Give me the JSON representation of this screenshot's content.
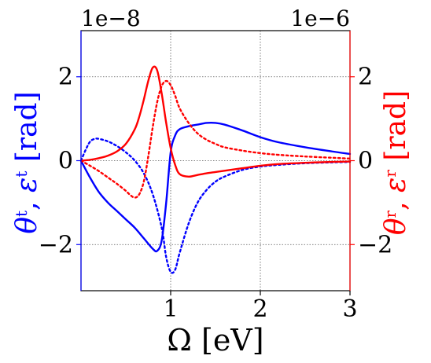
{
  "chart_data": {
    "type": "line",
    "xlabel": "Ω [eV]",
    "xlim": [
      0,
      3
    ],
    "x_ticks": [
      1,
      2,
      3
    ],
    "left_axis": {
      "label_main": "θ",
      "label_sup1": "t",
      "label_sep": ", ",
      "label_eps": "ε",
      "label_sup2": "t",
      "label_unit": " [rad]",
      "scale_label": "1e−8",
      "ylim": [
        -3.1,
        3.1
      ],
      "ticks": [
        -2,
        0,
        2
      ],
      "tick_labels": [
        "−2",
        "0",
        "2"
      ],
      "color": "#0000ff"
    },
    "right_axis": {
      "label_main": "θ",
      "label_sup1": "r",
      "label_sep": ", ",
      "label_eps": "ε",
      "label_sup2": "r",
      "label_unit": " [rad]",
      "scale_label": "1e−6",
      "ylim": [
        -3.1,
        3.1
      ],
      "ticks": [
        -2,
        0,
        2
      ],
      "tick_labels": [
        "−2",
        "0",
        "2"
      ],
      "color": "#ff0000"
    },
    "x_tick_labels": [
      "1",
      "2",
      "3"
    ],
    "grid": true,
    "series": [
      {
        "axis": "left",
        "color": "#0000ff",
        "style": "solid",
        "x": [
          0,
          0.1,
          0.2,
          0.3,
          0.4,
          0.5,
          0.6,
          0.7,
          0.8,
          0.85,
          0.9,
          0.95,
          1.0,
          1.05,
          1.1,
          1.2,
          1.3,
          1.4,
          1.5,
          1.6,
          1.8,
          2.0,
          2.2,
          2.5,
          2.8,
          3.0
        ],
        "y": [
          0,
          -0.4,
          -0.75,
          -1.0,
          -1.2,
          -1.4,
          -1.6,
          -1.85,
          -2.1,
          -2.15,
          -1.9,
          -1.0,
          0.2,
          0.6,
          0.75,
          0.82,
          0.86,
          0.9,
          0.9,
          0.86,
          0.72,
          0.56,
          0.44,
          0.32,
          0.22,
          0.16
        ]
      },
      {
        "axis": "left",
        "color": "#0000ff",
        "style": "dotted",
        "x": [
          0,
          0.05,
          0.1,
          0.15,
          0.2,
          0.3,
          0.4,
          0.5,
          0.6,
          0.7,
          0.8,
          0.9,
          0.95,
          1.0,
          1.05,
          1.1,
          1.2,
          1.3,
          1.4,
          1.5,
          1.6,
          1.8,
          2.0,
          2.2,
          2.5,
          2.8,
          3.0
        ],
        "y": [
          0,
          0.25,
          0.45,
          0.52,
          0.52,
          0.46,
          0.35,
          0.2,
          0.0,
          -0.3,
          -0.8,
          -1.6,
          -2.3,
          -2.65,
          -2.6,
          -2.2,
          -1.5,
          -1.0,
          -0.7,
          -0.5,
          -0.38,
          -0.22,
          -0.14,
          -0.1,
          -0.06,
          -0.04,
          -0.03
        ]
      },
      {
        "axis": "right",
        "color": "#ff0000",
        "style": "solid",
        "x": [
          0,
          0.1,
          0.2,
          0.3,
          0.4,
          0.5,
          0.6,
          0.65,
          0.7,
          0.75,
          0.8,
          0.85,
          0.9,
          0.95,
          1.0,
          1.05,
          1.1,
          1.2,
          1.3,
          1.4,
          1.5,
          1.6,
          1.8,
          2.0,
          2.2,
          2.5,
          2.8,
          3.0
        ],
        "y": [
          0,
          0.02,
          0.06,
          0.12,
          0.22,
          0.4,
          0.75,
          1.05,
          1.45,
          1.9,
          2.22,
          2.15,
          1.6,
          0.9,
          0.3,
          -0.1,
          -0.32,
          -0.38,
          -0.34,
          -0.3,
          -0.27,
          -0.24,
          -0.18,
          -0.12,
          -0.08,
          -0.05,
          -0.03,
          -0.02
        ]
      },
      {
        "axis": "right",
        "color": "#ff0000",
        "style": "dotted",
        "x": [
          0,
          0.1,
          0.2,
          0.3,
          0.4,
          0.5,
          0.55,
          0.6,
          0.65,
          0.7,
          0.75,
          0.8,
          0.85,
          0.9,
          0.95,
          1.0,
          1.05,
          1.1,
          1.2,
          1.3,
          1.4,
          1.5,
          1.6,
          1.8,
          2.0,
          2.2,
          2.5,
          2.8,
          3.0
        ],
        "y": [
          0,
          -0.12,
          -0.25,
          -0.4,
          -0.55,
          -0.72,
          -0.82,
          -0.88,
          -0.8,
          -0.5,
          0.1,
          0.8,
          1.4,
          1.78,
          1.9,
          1.8,
          1.55,
          1.25,
          0.9,
          0.65,
          0.5,
          0.4,
          0.32,
          0.24,
          0.18,
          0.14,
          0.1,
          0.07,
          0.05
        ]
      }
    ]
  }
}
